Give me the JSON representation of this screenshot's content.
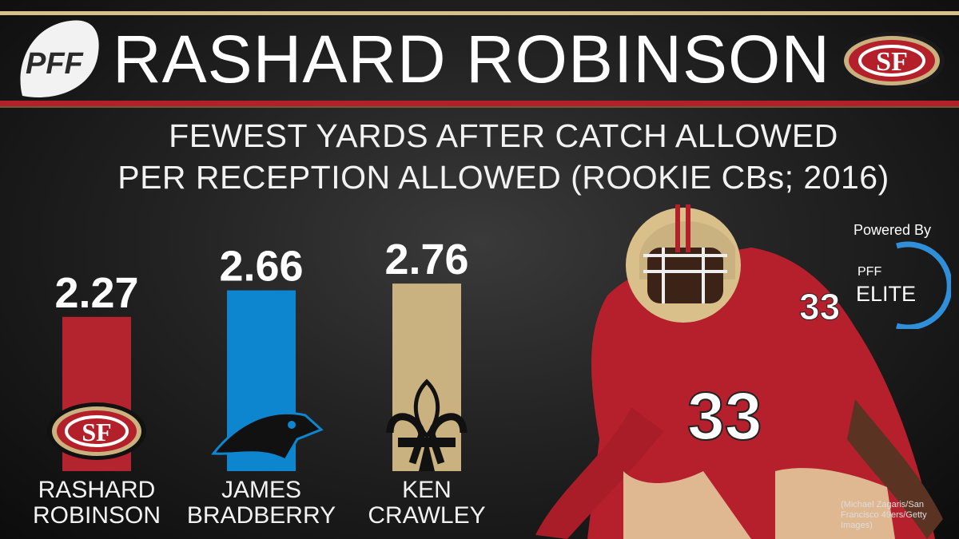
{
  "header": {
    "brand": "PFF",
    "title": "RASHARD ROBINSON",
    "subtitle_line1": "FEWEST YARDS AFTER CATCH ALLOWED",
    "subtitle_line2": "PER RECEPTION ALLOWED (ROOKIE CBs; 2016)"
  },
  "chart_data": {
    "type": "bar",
    "categories": [
      "RASHARD ROBINSON",
      "JAMES BRADBERRY",
      "KEN CRAWLEY"
    ],
    "values": [
      2.27,
      2.66,
      2.76
    ],
    "data_labels": [
      "2.27",
      "2.66",
      "2.76"
    ],
    "name_lines": [
      [
        "RASHARD",
        "ROBINSON"
      ],
      [
        "JAMES",
        "BRADBERRY"
      ],
      [
        "KEN",
        "CRAWLEY"
      ]
    ],
    "teams": [
      "SF",
      "CAR",
      "NO"
    ],
    "colors": [
      "#b3242e",
      "#0d86cf",
      "#c9b27f"
    ],
    "title": "FEWEST YARDS AFTER CATCH ALLOWED PER RECEPTION ALLOWED (ROOKIE CBs; 2016)",
    "xlabel": "",
    "ylabel": "",
    "grid": false,
    "legend": "none"
  },
  "branding": {
    "powered_by": "Powered By",
    "pff": "PFF",
    "elite": "ELITE"
  },
  "photo_credit": "(Michael Zagaris/San Francisco 49ers/Getty Images)",
  "logos": {
    "sf_text": "SF",
    "jersey_number": "33"
  },
  "colors": {
    "accent_red": "#b3202a",
    "accent_gold": "#d9c08a",
    "ring_blue": "#2f8fd8"
  }
}
